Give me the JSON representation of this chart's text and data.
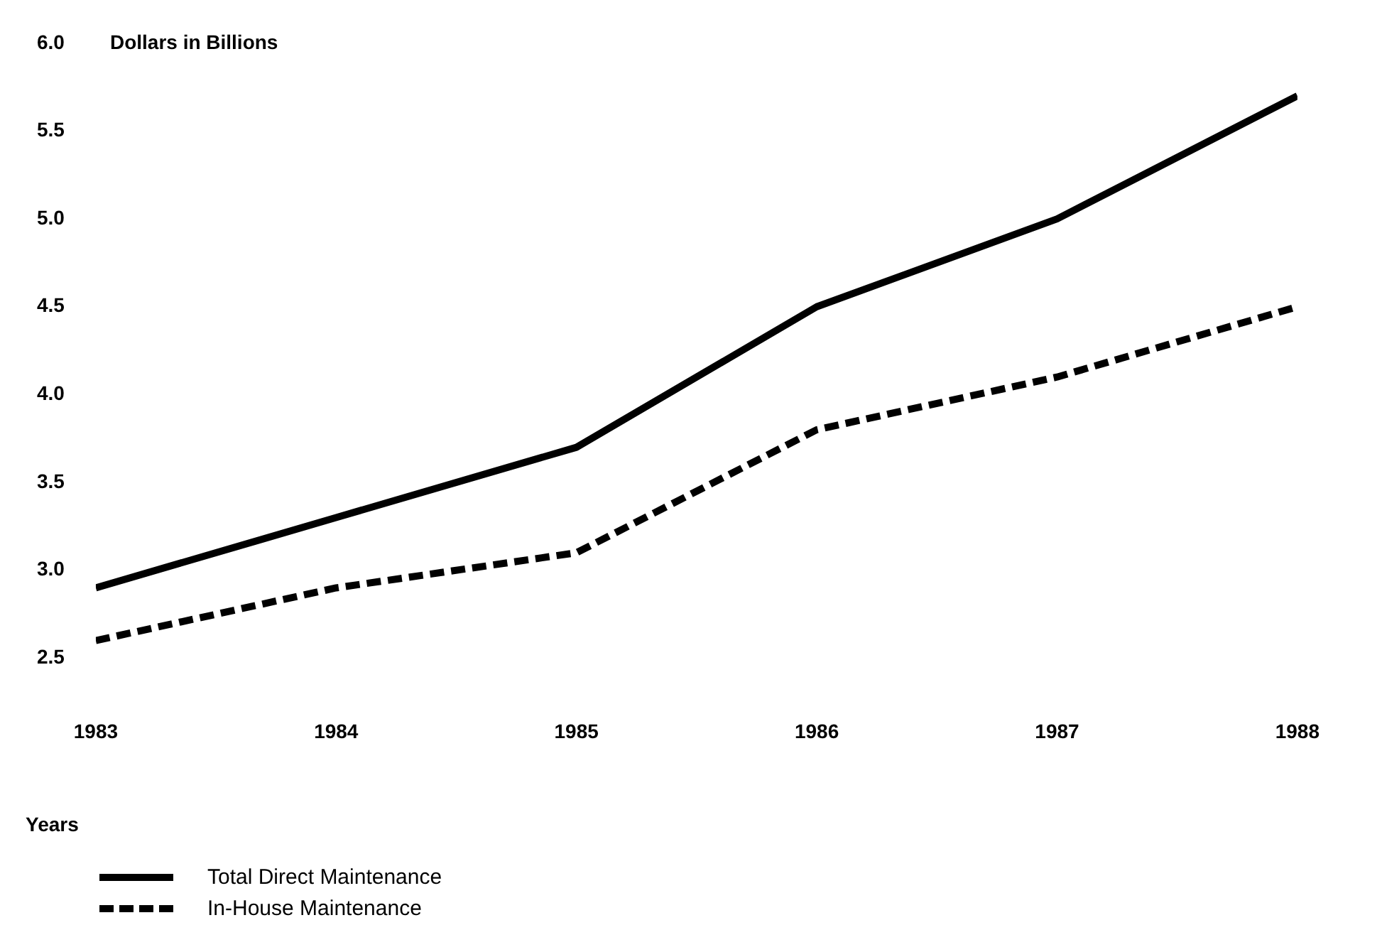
{
  "chart_data": {
    "type": "line",
    "ylabel": "Dollars in Billions",
    "xlabel": "Years",
    "x": [
      1983,
      1984,
      1985,
      1986,
      1987,
      1988
    ],
    "xlim": [
      1983,
      1988
    ],
    "xticks": [
      1983,
      1984,
      1985,
      1986,
      1987,
      1988
    ],
    "ylim": [
      2.5,
      6.0
    ],
    "yticks": [
      {
        "value": 2.5,
        "label": "2.5"
      },
      {
        "value": 3,
        "label": "3.0"
      },
      {
        "value": 3.5,
        "label": "3.5"
      },
      {
        "value": 4,
        "label": "4.0"
      },
      {
        "value": 4.5,
        "label": "4.5"
      },
      {
        "value": 5,
        "label": "5.0"
      },
      {
        "value": 5.5,
        "label": "5.5"
      },
      {
        "value": 6,
        "label": "6.0"
      }
    ],
    "grid": false,
    "legend": "bottom left",
    "marker": "none",
    "series": [
      {
        "name": "Total Direct Maintenance",
        "color": "#000000",
        "line_style": "solid",
        "values": [
          2.9,
          3.3,
          3.7,
          4.5,
          5.0,
          5.7
        ]
      },
      {
        "name": "In-House Maintenance",
        "color": "#000000",
        "line_style": "dashed",
        "values": [
          2.6,
          2.9,
          3.1,
          3.8,
          4.1,
          4.5
        ]
      }
    ]
  }
}
